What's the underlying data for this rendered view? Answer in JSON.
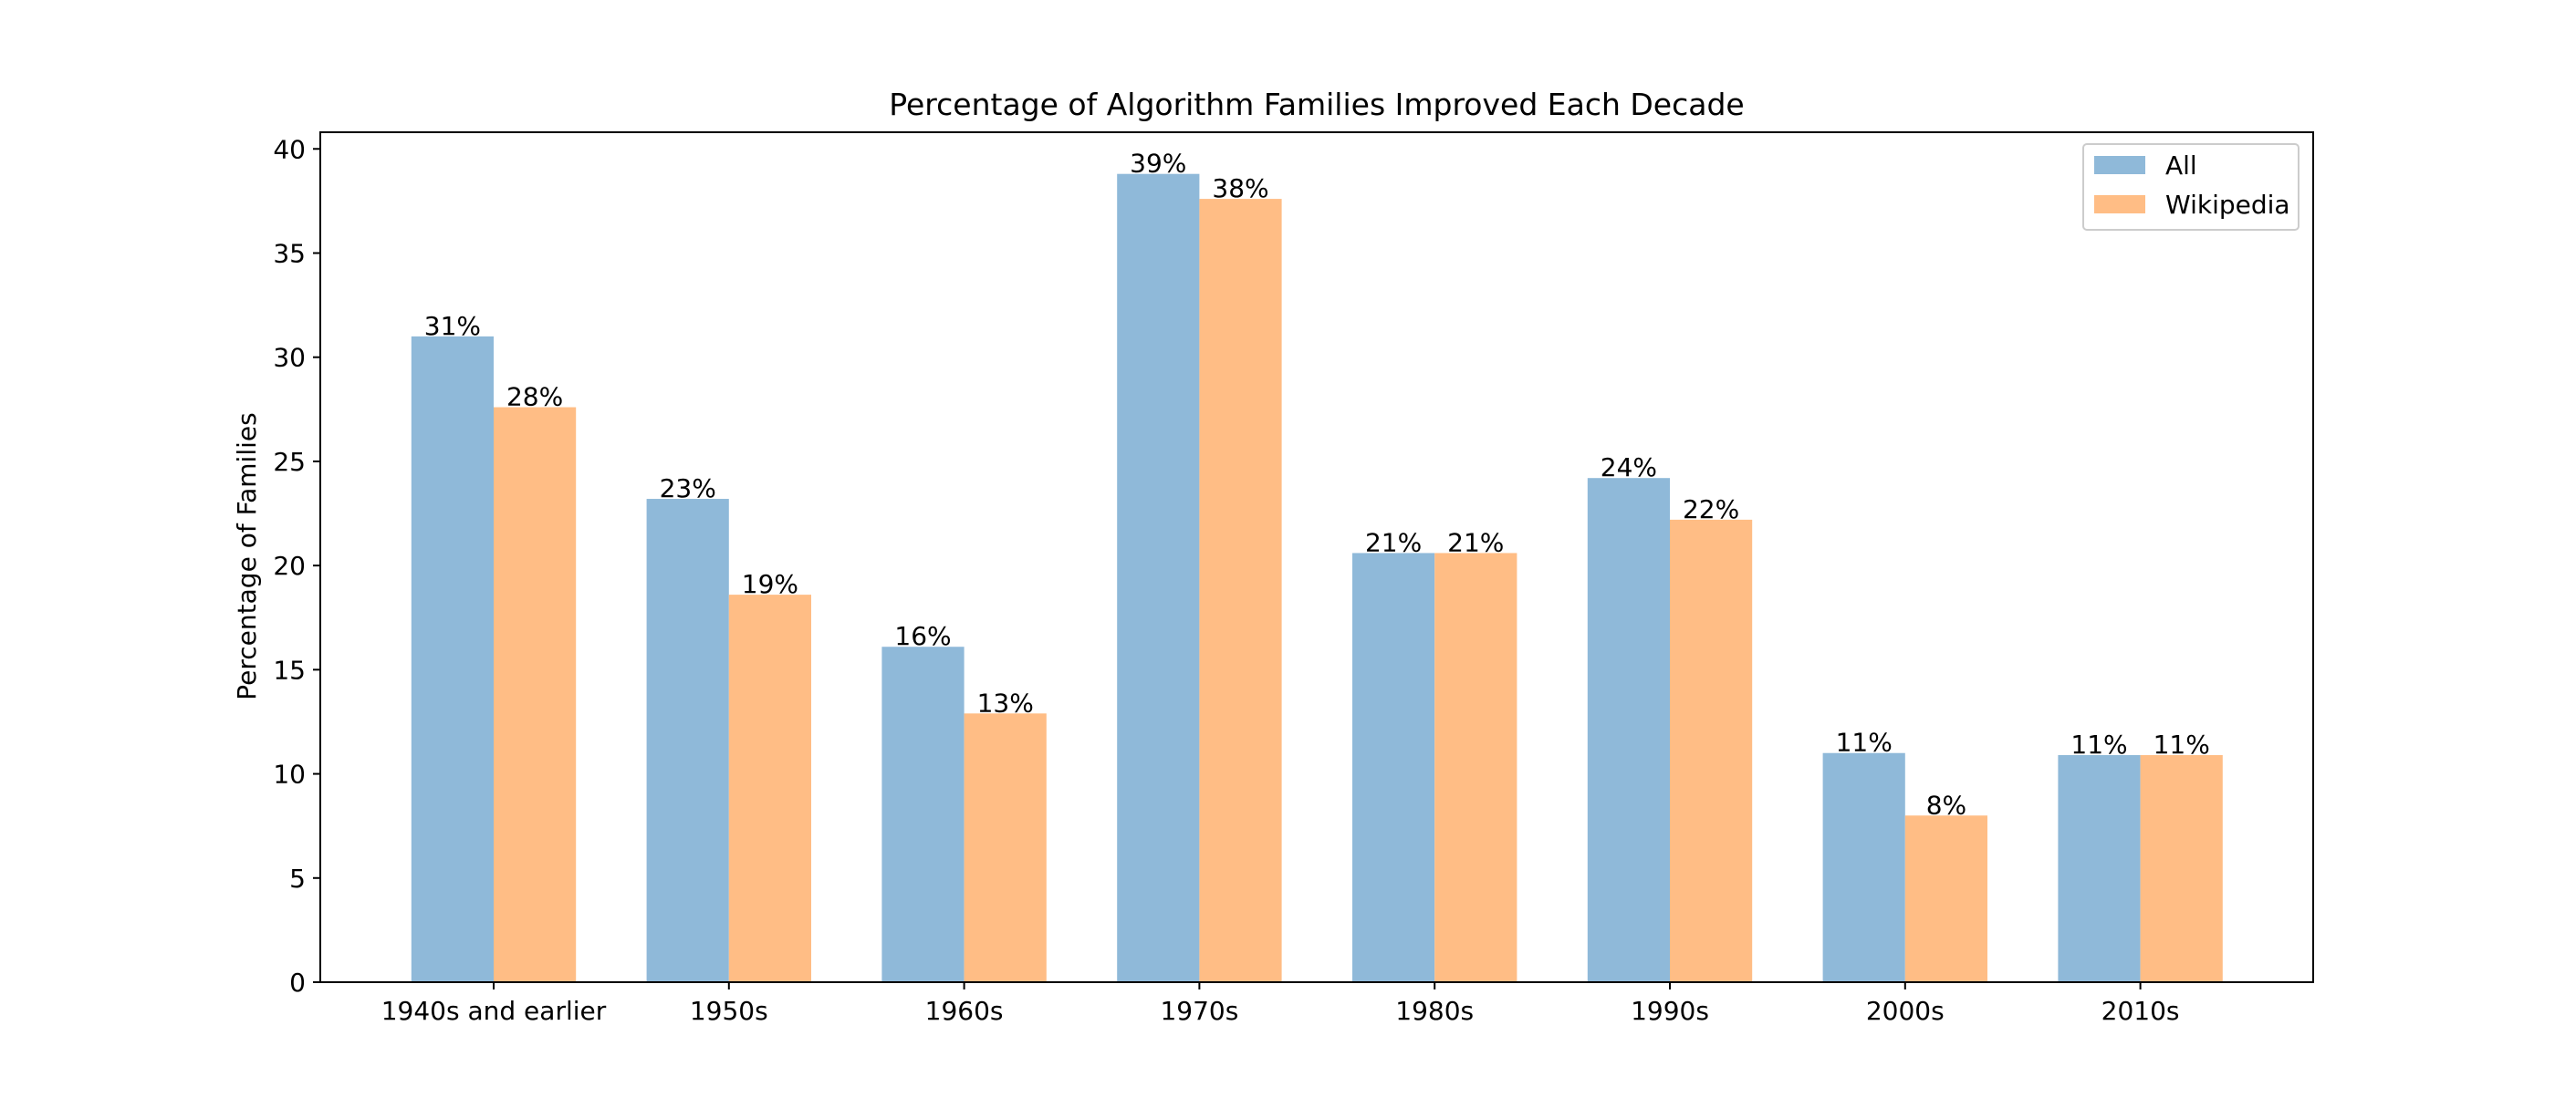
{
  "chart_data": {
    "type": "bar",
    "title": "Percentage of Algorithm Families Improved Each Decade",
    "xlabel": "",
    "ylabel": "Percentage of Families",
    "ylim": [
      0,
      40.8
    ],
    "yticks": [
      0,
      5,
      10,
      15,
      20,
      25,
      30,
      35,
      40
    ],
    "categories": [
      "1940s and earlier",
      "1950s",
      "1960s",
      "1970s",
      "1980s",
      "1990s",
      "2000s",
      "2010s"
    ],
    "series": [
      {
        "name": "All",
        "color": "#8fb9d9",
        "values": [
          31.0,
          23.2,
          16.1,
          38.8,
          20.6,
          24.2,
          11.0,
          10.9
        ],
        "labels": [
          "31%",
          "23%",
          "16%",
          "39%",
          "21%",
          "24%",
          "11%",
          "11%"
        ]
      },
      {
        "name": "Wikipedia",
        "color": "#ffbd85",
        "values": [
          27.6,
          18.6,
          12.9,
          37.6,
          20.6,
          22.2,
          8.0,
          10.9
        ],
        "labels": [
          "28%",
          "19%",
          "13%",
          "38%",
          "21%",
          "22%",
          "8%",
          "11%"
        ]
      }
    ],
    "grid": false,
    "legend_position": "top-right"
  }
}
